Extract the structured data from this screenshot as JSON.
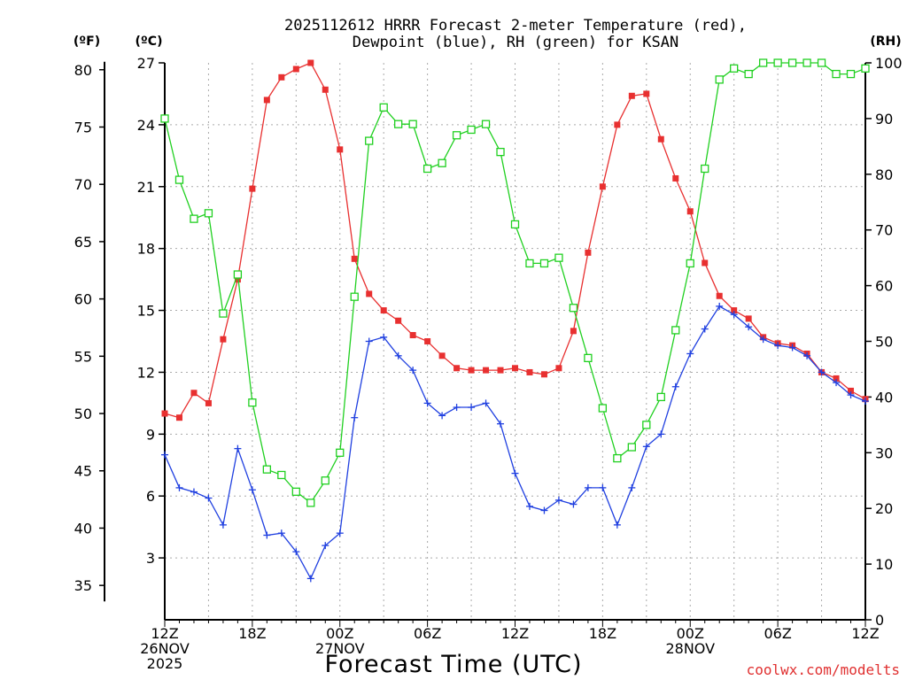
{
  "title_line1": "2025112612 HRRR Forecast 2-meter Temperature (red),",
  "title_line2": "Dewpoint (blue), RH (green) for KSAN",
  "credit": "coolwx.com/modelts",
  "chart_data": {
    "type": "line",
    "title": "2025112612 HRRR Forecast 2-meter Temperature (red), Dewpoint (blue), RH (green) for KSAN",
    "xlabel": "Forecast Time (UTC)",
    "x": [
      0,
      1,
      2,
      3,
      4,
      5,
      6,
      7,
      8,
      9,
      10,
      11,
      12,
      13,
      14,
      15,
      16,
      17,
      18,
      19,
      20,
      21,
      22,
      23,
      24,
      25,
      26,
      27,
      28,
      29,
      30,
      31,
      32,
      33,
      34,
      35,
      36,
      37,
      38,
      39,
      40,
      41,
      42,
      43,
      44,
      45,
      46,
      47,
      48
    ],
    "x_range": [
      0,
      48
    ],
    "x_tick_labels": [
      {
        "at": 0,
        "lines": [
          "12Z",
          "26NOV",
          "2025"
        ]
      },
      {
        "at": 6,
        "lines": [
          "18Z"
        ]
      },
      {
        "at": 12,
        "lines": [
          "00Z",
          "27NOV"
        ]
      },
      {
        "at": 18,
        "lines": [
          "06Z"
        ]
      },
      {
        "at": 24,
        "lines": [
          "12Z"
        ]
      },
      {
        "at": 30,
        "lines": [
          "18Z"
        ]
      },
      {
        "at": 36,
        "lines": [
          "00Z",
          "28NOV"
        ]
      },
      {
        "at": 42,
        "lines": [
          "06Z"
        ]
      },
      {
        "at": 48,
        "lines": [
          "12Z"
        ]
      }
    ],
    "y_left_F": {
      "label": "(ºF)",
      "ticks": [
        35,
        40,
        45,
        50,
        55,
        60,
        65,
        70,
        75,
        80
      ]
    },
    "y_left_C": {
      "label": "(ºC)",
      "range": [
        0,
        27
      ],
      "ticks": [
        3,
        6,
        9,
        12,
        15,
        18,
        21,
        24,
        27
      ]
    },
    "y_right": {
      "label": "(RH)",
      "range": [
        0,
        100
      ],
      "ticks": [
        0,
        10,
        20,
        30,
        40,
        50,
        60,
        70,
        80,
        90,
        100
      ]
    },
    "series": [
      {
        "name": "2-meter Temperature",
        "color": "#e83030",
        "axis": "C",
        "marker": "filled-square",
        "values": [
          10.0,
          9.8,
          11.0,
          10.5,
          13.6,
          16.5,
          20.9,
          25.2,
          26.3,
          26.7,
          27.0,
          25.7,
          22.8,
          17.5,
          15.8,
          15.0,
          14.5,
          13.8,
          13.5,
          12.8,
          12.2,
          12.1,
          12.1,
          12.1,
          12.2,
          12.0,
          11.9,
          12.2,
          14.0,
          17.8,
          21.0,
          24.0,
          25.4,
          25.5,
          23.3,
          21.4,
          19.8,
          17.3,
          15.7,
          15.0,
          14.6,
          13.7,
          13.4,
          13.3,
          12.9,
          12.0,
          11.7,
          11.1,
          10.7
        ]
      },
      {
        "name": "Dewpoint",
        "color": "#2040e0",
        "axis": "C",
        "marker": "plus",
        "values": [
          8.0,
          6.4,
          6.2,
          5.9,
          4.6,
          8.3,
          6.3,
          4.1,
          4.2,
          3.3,
          2.0,
          3.6,
          4.2,
          9.8,
          13.5,
          13.7,
          12.8,
          12.1,
          10.5,
          9.9,
          10.3,
          10.3,
          10.5,
          9.5,
          7.1,
          5.5,
          5.3,
          5.8,
          5.6,
          6.4,
          6.4,
          4.6,
          6.4,
          8.4,
          9.0,
          11.3,
          12.9,
          14.1,
          15.2,
          14.8,
          14.2,
          13.6,
          13.3,
          13.2,
          12.8,
          12.0,
          11.5,
          10.9,
          10.6
        ]
      },
      {
        "name": "RH",
        "color": "#20d020",
        "axis": "RH",
        "marker": "open-square",
        "values": [
          90,
          79,
          72,
          73,
          55,
          62,
          39,
          27,
          26,
          23,
          21,
          25,
          30,
          58,
          86,
          92,
          89,
          89,
          81,
          82,
          87,
          88,
          89,
          84,
          71,
          64,
          64,
          65,
          56,
          47,
          38,
          29,
          31,
          35,
          40,
          52,
          64,
          81,
          97,
          99,
          98,
          100,
          100,
          100,
          100,
          100,
          98,
          98,
          99
        ]
      }
    ]
  }
}
